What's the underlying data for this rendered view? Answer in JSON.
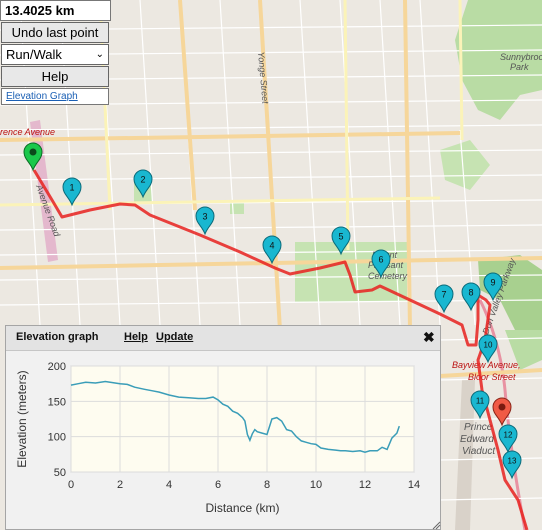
{
  "controls": {
    "distance": "13.4025 km",
    "undo_label": "Undo last point",
    "mode_selected": "Run/Walk",
    "help_label": "Help",
    "elevation_link": "Elevation Graph"
  },
  "map_labels": {
    "lawrence": "rence Avenue",
    "avenue_road": "Avenue Road",
    "yonge": "Yonge Street",
    "mount_pleasant_1": "Mount",
    "mount_pleasant_2": "Pleasant",
    "mount_pleasant_3": "Cemetery",
    "sunnybrook_1": "Sunnybrook",
    "sunnybrook_2": "Park",
    "bayview_bloor_1": "Bayview Avenue,",
    "bayview_bloor_2": "Bloor Street",
    "don_valley": "Don Valley Parkway",
    "prince_1": "Prince",
    "prince_2": "Edward",
    "prince_3": "Viaduct"
  },
  "markers": [
    "1",
    "2",
    "3",
    "4",
    "5",
    "6",
    "7",
    "8",
    "9",
    "10",
    "11",
    "12",
    "13"
  ],
  "colors": {
    "route": "#e8211e",
    "marker": "#19b7d0",
    "start": "#1bc84b",
    "end": "#f05a45",
    "graph_line": "#3a9db8"
  },
  "panel": {
    "title": "Elevation graph",
    "help": "Help",
    "update": "Update",
    "close": "✖"
  },
  "chart_data": {
    "type": "line",
    "xlabel": "Distance (km)",
    "ylabel": "Elevation (meters)",
    "xlim": [
      0,
      14
    ],
    "ylim": [
      50,
      200
    ],
    "x_ticks": [
      0,
      2,
      4,
      6,
      8,
      10,
      12,
      14
    ],
    "y_ticks": [
      50,
      100,
      150,
      200
    ],
    "grid": true,
    "series": [
      {
        "x": [
          0,
          0.3,
          0.6,
          1,
          1.4,
          1.8,
          2,
          2.3,
          2.6,
          3,
          3.3,
          3.6,
          4,
          4.4,
          4.8,
          5.2,
          5.5,
          5.8,
          6,
          6.2,
          6.4,
          6.6,
          6.8,
          7,
          7.1,
          7.2,
          7.3,
          7.4,
          7.5,
          7.6,
          7.8,
          8,
          8.2,
          8.4,
          8.6,
          8.8,
          9,
          9.2,
          9.4,
          9.6,
          9.8,
          10,
          10.2,
          10.5,
          10.8,
          11,
          11.2,
          11.5,
          11.8,
          12,
          12.2,
          12.5,
          12.7,
          12.9,
          13.1,
          13.3,
          13.4
        ],
        "y": [
          173,
          175,
          177,
          176,
          178,
          176,
          175,
          174,
          170,
          167,
          165,
          163,
          159,
          156,
          155,
          154,
          154,
          156,
          152,
          146,
          143,
          136,
          133,
          127,
          122,
          103,
          95,
          104,
          110,
          107,
          105,
          103,
          125,
          127,
          122,
          110,
          108,
          100,
          94,
          92,
          90,
          89,
          84,
          82,
          81,
          80,
          80,
          79,
          80,
          78,
          80,
          80,
          85,
          82,
          98,
          105,
          115
        ]
      }
    ]
  }
}
